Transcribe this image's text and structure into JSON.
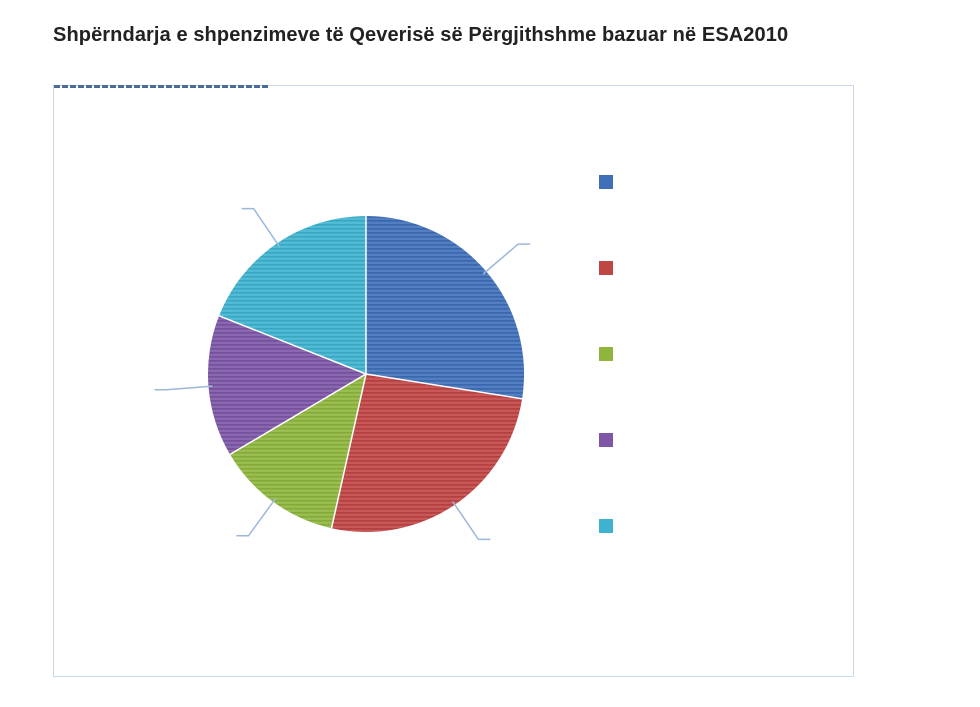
{
  "page": {
    "title": "Shpërndarja e shpenzimeve të Qeverisë së Përgjithshme bazuar në ESA2010"
  },
  "chart_data": {
    "type": "pie",
    "slices": [
      {
        "value": 27.5,
        "color": "#3f6fb8"
      },
      {
        "value": 26.0,
        "color": "#c04545"
      },
      {
        "value": 13.0,
        "color": "#8fb53f"
      },
      {
        "value": 14.5,
        "color": "#7d57a6"
      },
      {
        "value": 19.0,
        "color": "#3fb2cf"
      }
    ],
    "start_angle_deg": 0,
    "legend_placement": "right",
    "data_labels": "leader lines"
  }
}
